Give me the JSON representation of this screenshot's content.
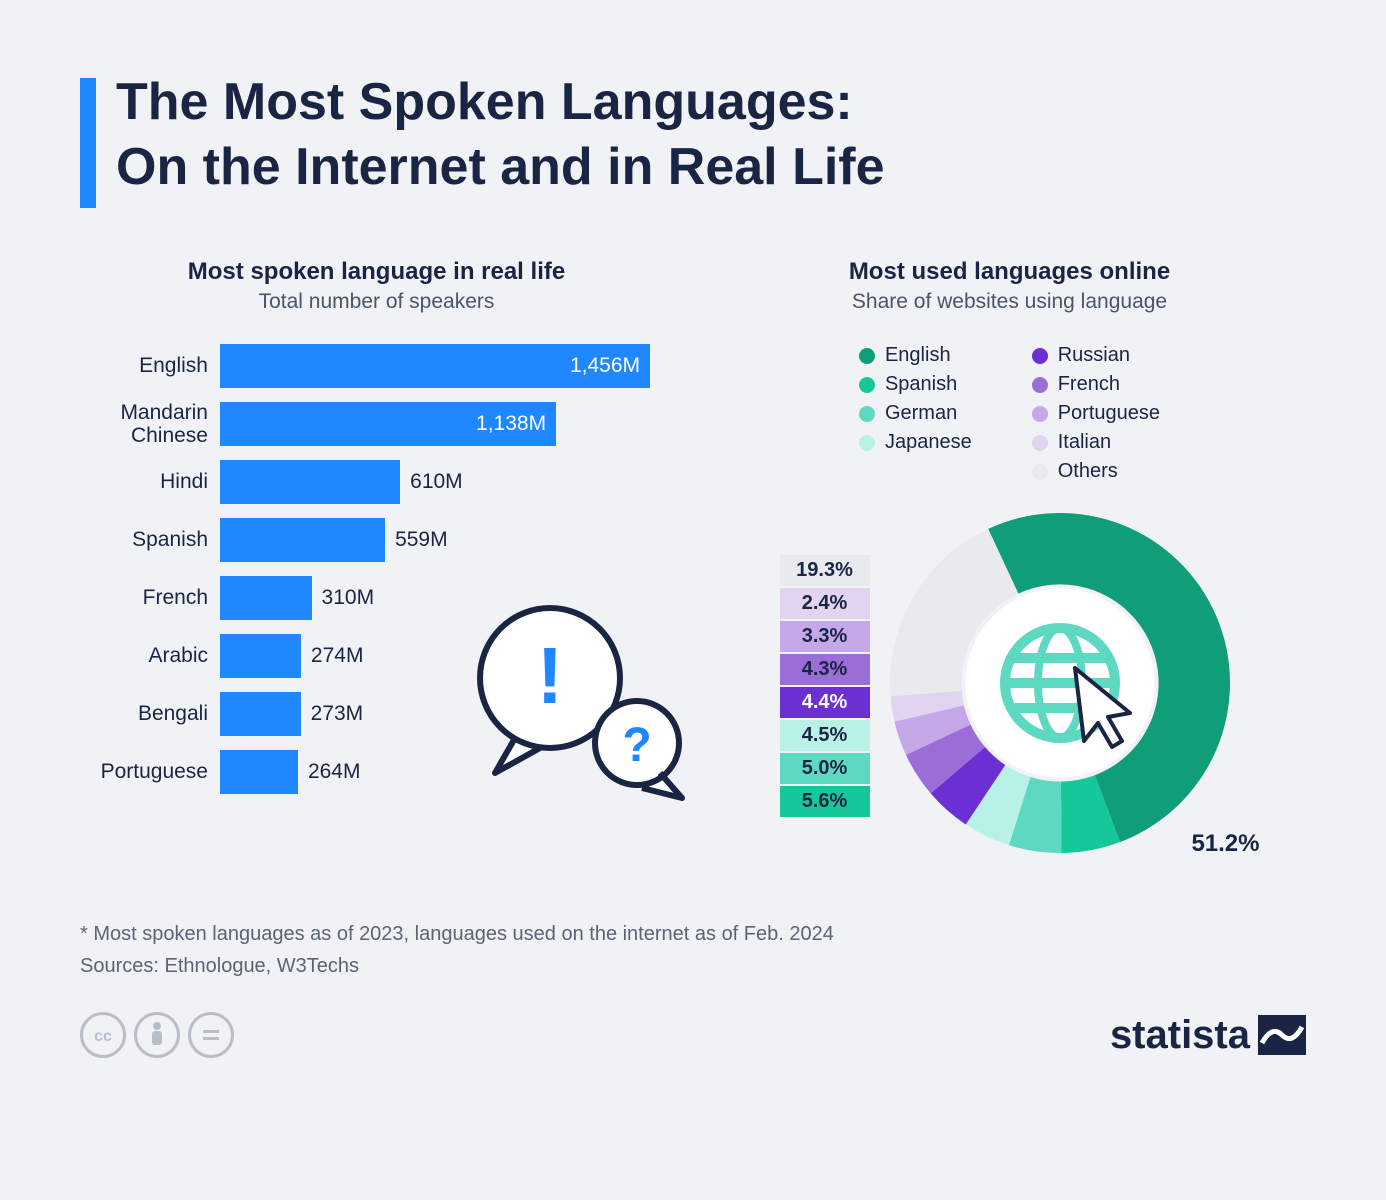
{
  "header": {
    "title_line1": "The Most Spoken Languages:",
    "title_line2": "On the Internet and in Real Life",
    "accent_color": "#1f87ff"
  },
  "bar_chart": {
    "type": "bar",
    "title": "Most spoken language in real life",
    "subtitle": "Total number of speakers",
    "bar_color": "#1f87ff",
    "label_fontsize": 21,
    "value_fontsize": 21,
    "max_value": 1456,
    "bars": [
      {
        "label": "English",
        "value": 1456,
        "display": "1,456M",
        "value_inside": true
      },
      {
        "label": "Mandarin Chinese",
        "value": 1138,
        "display": "1,138M",
        "value_inside": true
      },
      {
        "label": "Hindi",
        "value": 610,
        "display": "610M",
        "value_inside": false
      },
      {
        "label": "Spanish",
        "value": 559,
        "display": "559M",
        "value_inside": false
      },
      {
        "label": "French",
        "value": 310,
        "display": "310M",
        "value_inside": false
      },
      {
        "label": "Arabic",
        "value": 274,
        "display": "274M",
        "value_inside": false
      },
      {
        "label": "Bengali",
        "value": 273,
        "display": "273M",
        "value_inside": false
      },
      {
        "label": "Portuguese",
        "value": 264,
        "display": "264M",
        "value_inside": false
      }
    ]
  },
  "donut_chart": {
    "type": "pie",
    "title": "Most used languages online",
    "subtitle": "Share of websites using language",
    "background_color": "#f0f2f5",
    "inner_radius_ratio": 0.58,
    "slices": [
      {
        "label": "English",
        "value": 51.2,
        "display": "51.2%",
        "color": "#0f9d7a"
      },
      {
        "label": "Spanish",
        "value": 5.6,
        "display": "5.6%",
        "color": "#16c79a"
      },
      {
        "label": "German",
        "value": 5.0,
        "display": "5.0%",
        "color": "#5dd9c1"
      },
      {
        "label": "Japanese",
        "value": 4.5,
        "display": "4.5%",
        "color": "#b8f2e6"
      },
      {
        "label": "Russian",
        "value": 4.4,
        "display": "4.4%",
        "color": "#6b2fd4"
      },
      {
        "label": "French",
        "value": 4.3,
        "display": "4.3%",
        "color": "#9b6dd7"
      },
      {
        "label": "Portuguese",
        "value": 3.3,
        "display": "3.3%",
        "color": "#c4a8e8"
      },
      {
        "label": "Italian",
        "value": 2.4,
        "display": "2.4%",
        "color": "#e0d4f0"
      },
      {
        "label": "Others",
        "value": 19.3,
        "display": "19.3%",
        "color": "#e8eaee"
      }
    ],
    "legend_columns": [
      [
        "English",
        "Spanish",
        "German",
        "Japanese"
      ],
      [
        "Russian",
        "French",
        "Portuguese",
        "Italian",
        "Others"
      ]
    ],
    "pct_label_order_top_to_bottom": [
      "Others",
      "Italian",
      "Portuguese",
      "French",
      "Russian",
      "Japanese",
      "German",
      "Spanish"
    ],
    "big_label": "English",
    "globe_color": "#5dd9c1"
  },
  "footnote": {
    "line1": "* Most spoken languages as of 2023, languages used on the internet as of Feb. 2024",
    "line2": "Sources: Ethnologue, W3Techs"
  },
  "footer": {
    "brand": "statista",
    "brand_color": "#1a2544",
    "cc_icons": [
      "cc",
      "by",
      "nd"
    ]
  },
  "colors": {
    "text_primary": "#1a2544",
    "text_secondary": "#5a6478",
    "background": "#f0f2f5"
  }
}
